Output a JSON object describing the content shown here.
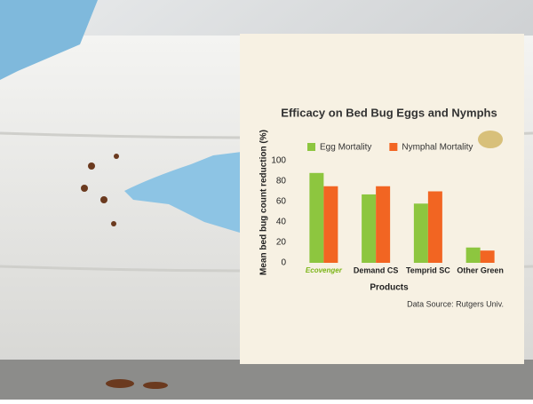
{
  "chart_data": {
    "type": "bar",
    "title": "Efficacy on Bed Bug Eggs and Nymphs",
    "y_label": "Mean bed bug count reduction (%)",
    "x_label": "Products",
    "source": "Data Source: Rutgers Univ.",
    "categories": [
      "Ecovenger",
      "Demand CS",
      "Temprid SC",
      "Other Green"
    ],
    "series": [
      {
        "name": "Egg Mortality",
        "color": "#8dc63f",
        "values": [
          88,
          67,
          58,
          15
        ]
      },
      {
        "name": "Nymphal Mortality",
        "color": "#f26522",
        "values": [
          75,
          75,
          70,
          12
        ]
      }
    ],
    "ylim": [
      0,
      100
    ],
    "yticks": [
      0,
      20,
      40,
      60,
      80,
      100
    ],
    "grid": false,
    "legend": "top"
  }
}
